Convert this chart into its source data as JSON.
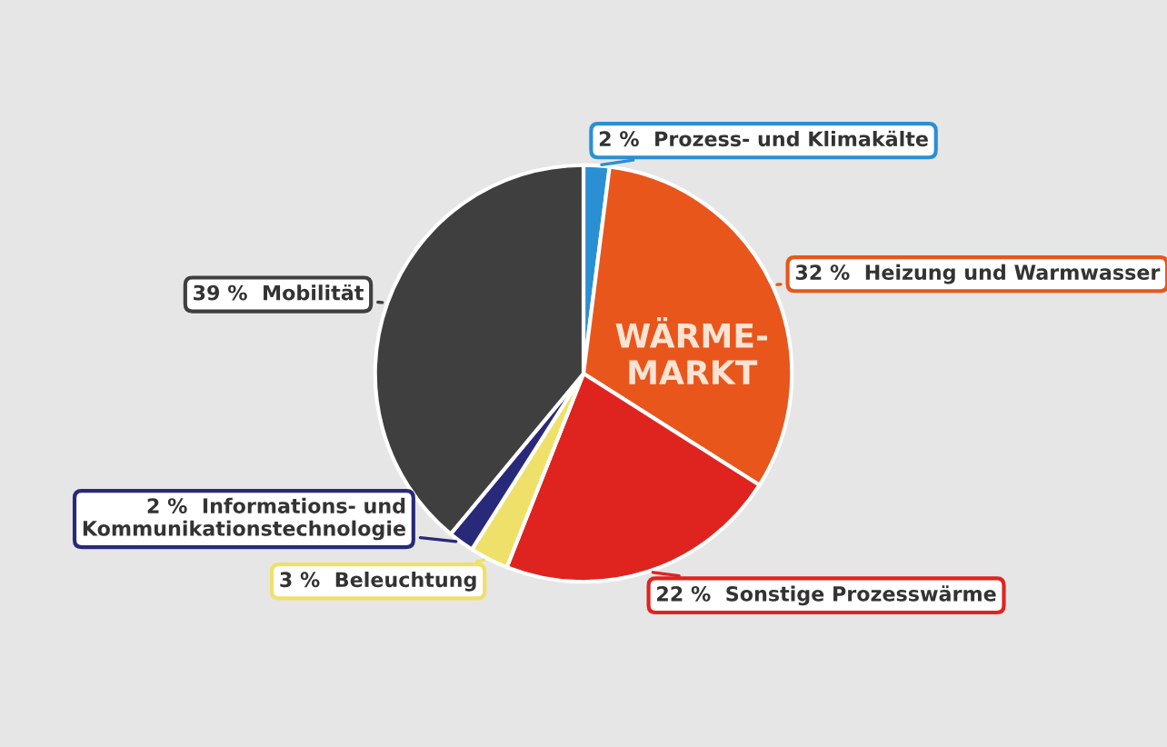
{
  "chart_data": {
    "type": "pie",
    "categories": [
      "Prozess- und Klimakälte",
      "Heizung und Warmwasser",
      "Sonstige Prozesswärme",
      "Beleuchtung",
      "Informations- und\nKommunikationstechnologie",
      "Mobilität"
    ],
    "values": [
      2,
      32,
      22,
      3,
      2,
      39
    ],
    "value_labels": [
      "2 %",
      "32 %",
      "22 %",
      "3 %",
      "2 %",
      "39 %"
    ],
    "colors": [
      "#2b8fd3",
      "#e8561c",
      "#df2420",
      "#efe06a",
      "#29297a",
      "#3f3f3f"
    ],
    "annotations": [
      "WÄRME-\nMARKT"
    ],
    "legend": false
  }
}
